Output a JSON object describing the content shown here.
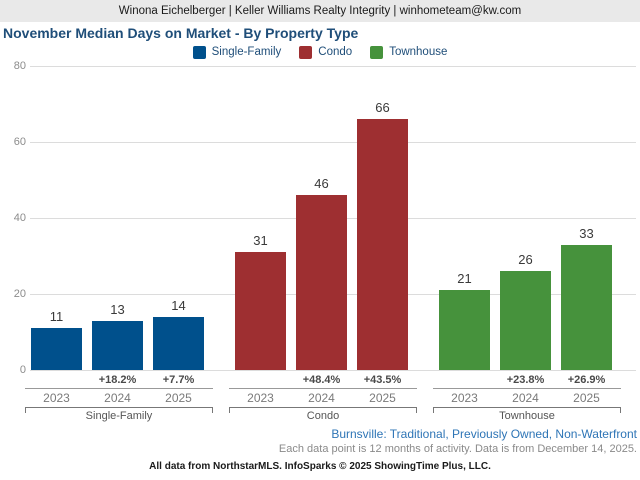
{
  "header": {
    "text": "Winona Eichelberger | Keller Williams Realty Integrity | winhometeam@kw.com"
  },
  "title": "November Median Days on Market - By Property Type",
  "legend": [
    {
      "label": "Single-Family",
      "color": "#00508c"
    },
    {
      "label": "Condo",
      "color": "#9e2f31"
    },
    {
      "label": "Townhouse",
      "color": "#46923c"
    }
  ],
  "chart_data": {
    "type": "bar",
    "title": "November Median Days on Market - By Property Type",
    "xlabel": "",
    "ylabel": "",
    "ylim": [
      0,
      80
    ],
    "yticks": [
      0,
      20,
      40,
      60,
      80
    ],
    "grid": true,
    "legend_position": "top",
    "categories": [
      "2023",
      "2024",
      "2025"
    ],
    "groups": [
      {
        "name": "Single-Family",
        "color": "#00508c",
        "years": [
          "2023",
          "2024",
          "2025"
        ],
        "values": [
          11,
          13,
          14
        ],
        "pct_change": [
          null,
          "+18.2%",
          "+7.7%"
        ]
      },
      {
        "name": "Condo",
        "color": "#9e2f31",
        "years": [
          "2023",
          "2024",
          "2025"
        ],
        "values": [
          31,
          46,
          66
        ],
        "pct_change": [
          null,
          "+48.4%",
          "+43.5%"
        ]
      },
      {
        "name": "Townhouse",
        "color": "#46923c",
        "years": [
          "2023",
          "2024",
          "2025"
        ],
        "values": [
          21,
          26,
          33
        ],
        "pct_change": [
          null,
          "+23.8%",
          "+26.9%"
        ]
      }
    ]
  },
  "footer": {
    "filters": "Burnsville: Traditional, Previously Owned, Non-Waterfront",
    "note": "Each data point is 12 months of activity. Data is from December 14, 2025.",
    "attribution": "All data from NorthstarMLS. InfoSparks © 2025 ShowingTime Plus, LLC."
  },
  "colors": {
    "topbar_bg": "#e9e9e9",
    "title_text": "#1f4e79",
    "gridline": "#dcdcdc",
    "axis_text": "#8c8c8c",
    "footer_link_blue": "#2e75b6"
  }
}
